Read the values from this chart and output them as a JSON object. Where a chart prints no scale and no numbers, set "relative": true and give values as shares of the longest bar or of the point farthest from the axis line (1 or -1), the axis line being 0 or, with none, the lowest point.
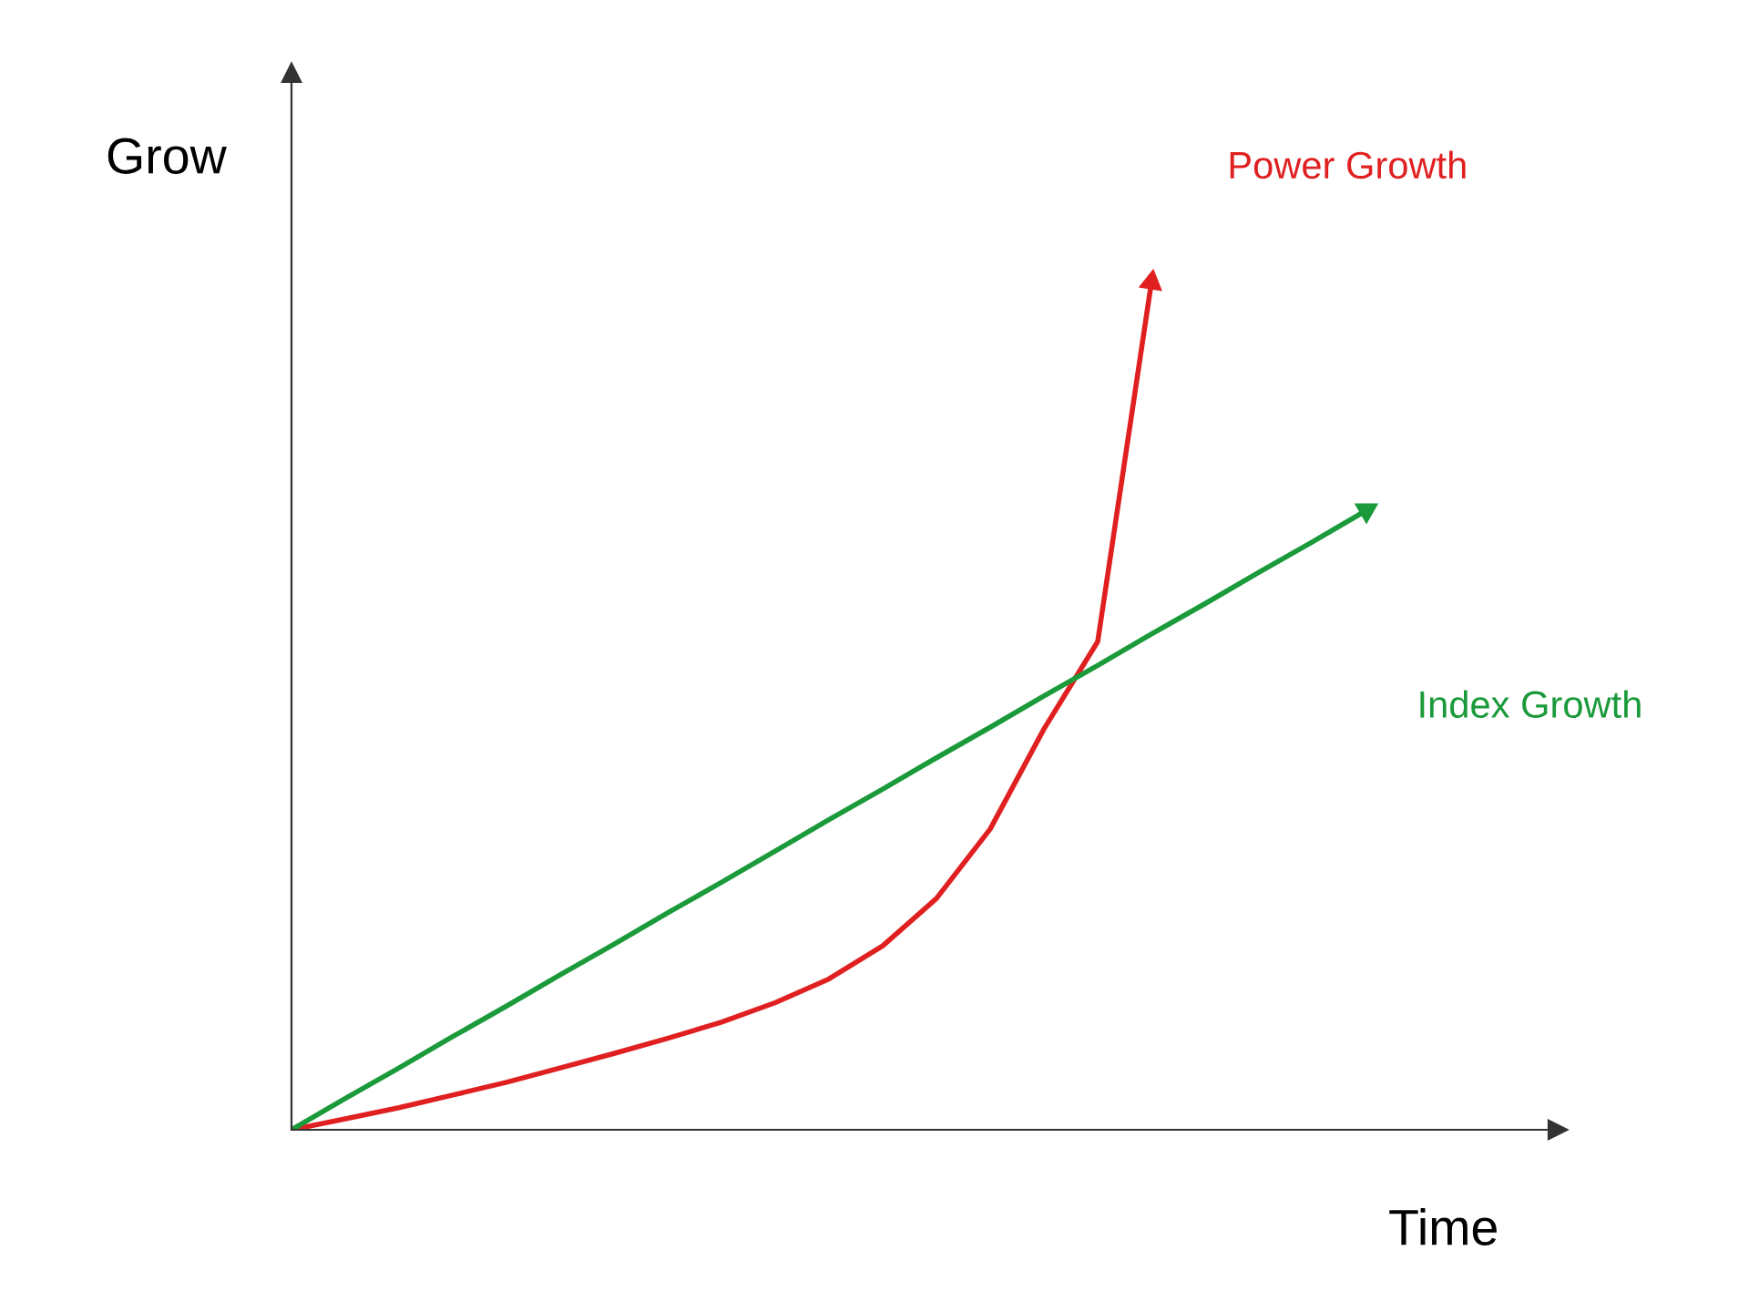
{
  "chart_data": {
    "type": "line",
    "relative": true,
    "xlabel": "Time",
    "ylabel": "Grow",
    "marker": "none",
    "line_style": "solid",
    "categories": [
      null,
      null,
      null,
      null,
      null,
      null,
      null,
      null,
      null,
      null,
      null,
      null,
      null,
      null,
      null,
      null,
      null,
      null,
      null,
      null,
      null
    ],
    "series": [
      {
        "name": "Power Growth",
        "color": "#e02020",
        "values": [
          0,
          0.013,
          0.026,
          0.041,
          0.056,
          0.073,
          0.09,
          0.108,
          0.127,
          0.15,
          0.178,
          0.217,
          0.273,
          0.355,
          0.473,
          0.576,
          1.0,
          null,
          null,
          null,
          null
        ]
      },
      {
        "name": "Index Growth",
        "color": "#1a9a3a",
        "values": [
          0,
          0.037,
          0.073,
          0.11,
          0.146,
          0.183,
          0.219,
          0.256,
          0.292,
          0.329,
          0.366,
          0.402,
          0.439,
          0.475,
          0.512,
          0.548,
          0.585,
          0.621,
          0.658,
          0.694,
          0.731
        ]
      }
    ]
  }
}
